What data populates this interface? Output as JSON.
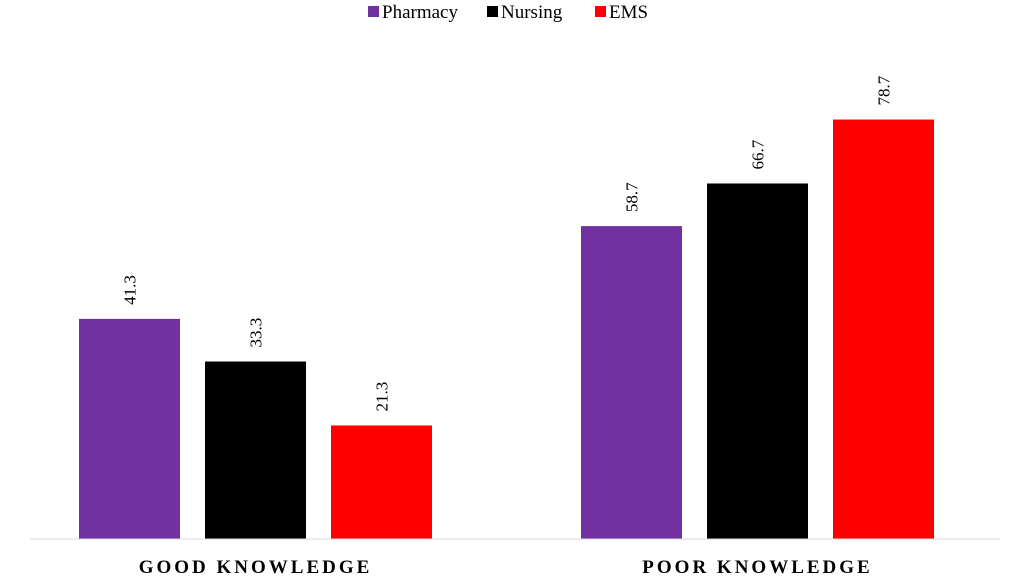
{
  "chart_data": {
    "type": "bar",
    "title": "",
    "xlabel": "",
    "ylabel": "",
    "categories": [
      "GOOD KNOWLEDGE",
      "POOR KNOWLEDGE"
    ],
    "series": [
      {
        "name": "Pharmacy",
        "color": "#7030a0",
        "values": [
          41.3,
          58.7
        ],
        "labels": [
          "41.3",
          "58.7"
        ]
      },
      {
        "name": "Nursing",
        "color": "#000000",
        "values": [
          33.3,
          66.7
        ],
        "labels": [
          "33.3",
          "66.7"
        ]
      },
      {
        "name": "EMS",
        "color": "#ff0000",
        "values": [
          21.3,
          78.7
        ],
        "labels": [
          "21.3",
          "78.7"
        ]
      }
    ],
    "ylim": [
      0,
      90
    ],
    "grid": false,
    "legend": "top-center",
    "data_labels": "rotated-vertical"
  }
}
